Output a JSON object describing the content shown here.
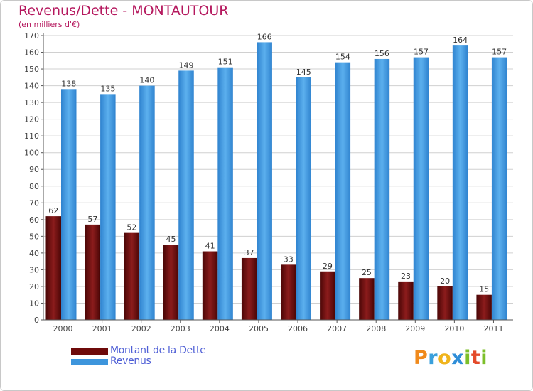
{
  "chart": {
    "title": "Revenus/Dette - MONTAUTOUR",
    "subtitle": "(en milliers d'€)"
  },
  "chart_data": {
    "type": "bar",
    "categories": [
      "2000",
      "2001",
      "2002",
      "2003",
      "2004",
      "2005",
      "2006",
      "2007",
      "2008",
      "2009",
      "2010",
      "2011"
    ],
    "series": [
      {
        "name": "Montant de la Dette",
        "color": "#6e0a0a",
        "values": [
          62,
          57,
          52,
          45,
          41,
          37,
          33,
          29,
          25,
          23,
          20,
          15
        ]
      },
      {
        "name": "Revenus",
        "color": "#3d95dc",
        "values": [
          138,
          135,
          140,
          149,
          151,
          166,
          145,
          154,
          156,
          157,
          164,
          157
        ]
      }
    ],
    "ylim": [
      0,
      170
    ],
    "yticks": [
      0,
      10,
      20,
      30,
      40,
      50,
      60,
      70,
      80,
      90,
      100,
      110,
      120,
      130,
      140,
      150,
      160,
      170
    ],
    "grid": true,
    "data_labels": true,
    "legend_position": "bottom-left"
  },
  "logo": {
    "letters": [
      {
        "ch": "P",
        "color": "#f08a1c"
      },
      {
        "ch": "r",
        "color": "#3aa0dc"
      },
      {
        "ch": "o",
        "color": "#f0b41c"
      },
      {
        "ch": "x",
        "color": "#2f8ed8"
      },
      {
        "ch": "i",
        "color": "#7cbf2a"
      },
      {
        "ch": "t",
        "color": "#e44a2a"
      },
      {
        "ch": "i",
        "color": "#7cbf2a"
      }
    ]
  }
}
